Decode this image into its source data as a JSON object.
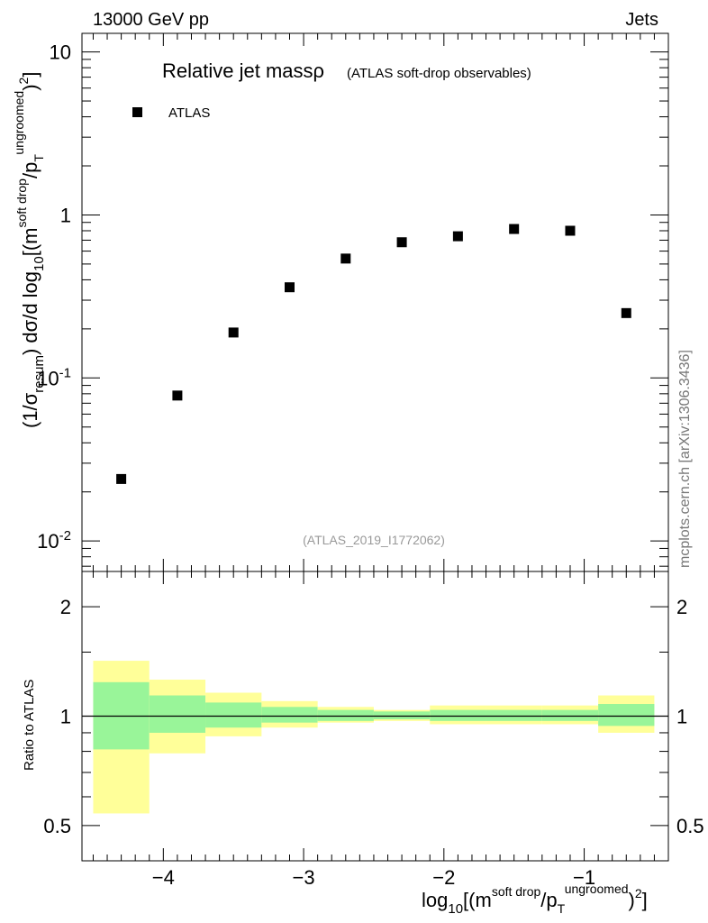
{
  "header": {
    "energy_label": "13000 GeV pp",
    "category_label": "Jets"
  },
  "side_label": "mcplots.cern.ch [arXiv:1306.3436]",
  "reference_label": "(ATLAS_2019_I1772062)",
  "colors": {
    "data": "#000000",
    "band_inner": "#99f599",
    "band_outer": "#ffff99",
    "ref_text": "#999999",
    "side_text": "#777777"
  },
  "chart_data": [
    {
      "type": "scatter",
      "title": "Relative jet massρ",
      "subtitle": "(ATLAS soft-drop observables)",
      "ylabel": "(1/σresum) dσ/d log10[(m^soft drop/pT^ungroomed)^2]",
      "yscale": "log",
      "ylim": [
        0.0065,
        13
      ],
      "xlim": [
        -4.58,
        -0.4
      ],
      "y_tick_labels": [
        "10^-2",
        "10^-1",
        "1",
        "10"
      ],
      "legend": {
        "entries": [
          "ATLAS"
        ],
        "placement": "top-left"
      },
      "series": [
        {
          "name": "ATLAS",
          "marker": "square",
          "x": [
            -4.3,
            -3.9,
            -3.5,
            -3.1,
            -2.7,
            -2.3,
            -1.9,
            -1.5,
            -1.1,
            -0.7
          ],
          "y": [
            0.024,
            0.078,
            0.19,
            0.36,
            0.54,
            0.68,
            0.74,
            0.82,
            0.8,
            0.25
          ]
        }
      ]
    },
    {
      "type": "area",
      "ylabel": "Ratio to ATLAS",
      "xlabel": "log10[(m^soft drop/pT^ungroomed)^2]",
      "yscale": "log",
      "ylim": [
        0.4,
        2.5
      ],
      "xlim": [
        -4.58,
        -0.4
      ],
      "x_tick_labels": [
        "−4",
        "−3",
        "−2",
        "−1"
      ],
      "y_tick_labels": [
        "0.5",
        "1",
        "2"
      ],
      "reference_line": 1,
      "bands": {
        "bin_edges": [
          -4.5,
          -4.1,
          -3.7,
          -3.3,
          -2.9,
          -2.5,
          -2.1,
          -1.7,
          -1.3,
          -0.9,
          -0.5
        ],
        "outer_low": [
          0.54,
          0.79,
          0.88,
          0.93,
          0.96,
          0.97,
          0.95,
          0.95,
          0.95,
          0.9
        ],
        "outer_high": [
          1.42,
          1.26,
          1.16,
          1.1,
          1.06,
          1.04,
          1.07,
          1.07,
          1.07,
          1.14
        ],
        "inner_low": [
          0.81,
          0.9,
          0.93,
          0.96,
          0.97,
          0.98,
          0.97,
          0.97,
          0.97,
          0.94
        ],
        "inner_high": [
          1.24,
          1.14,
          1.09,
          1.06,
          1.04,
          1.03,
          1.04,
          1.04,
          1.04,
          1.08
        ]
      }
    }
  ]
}
